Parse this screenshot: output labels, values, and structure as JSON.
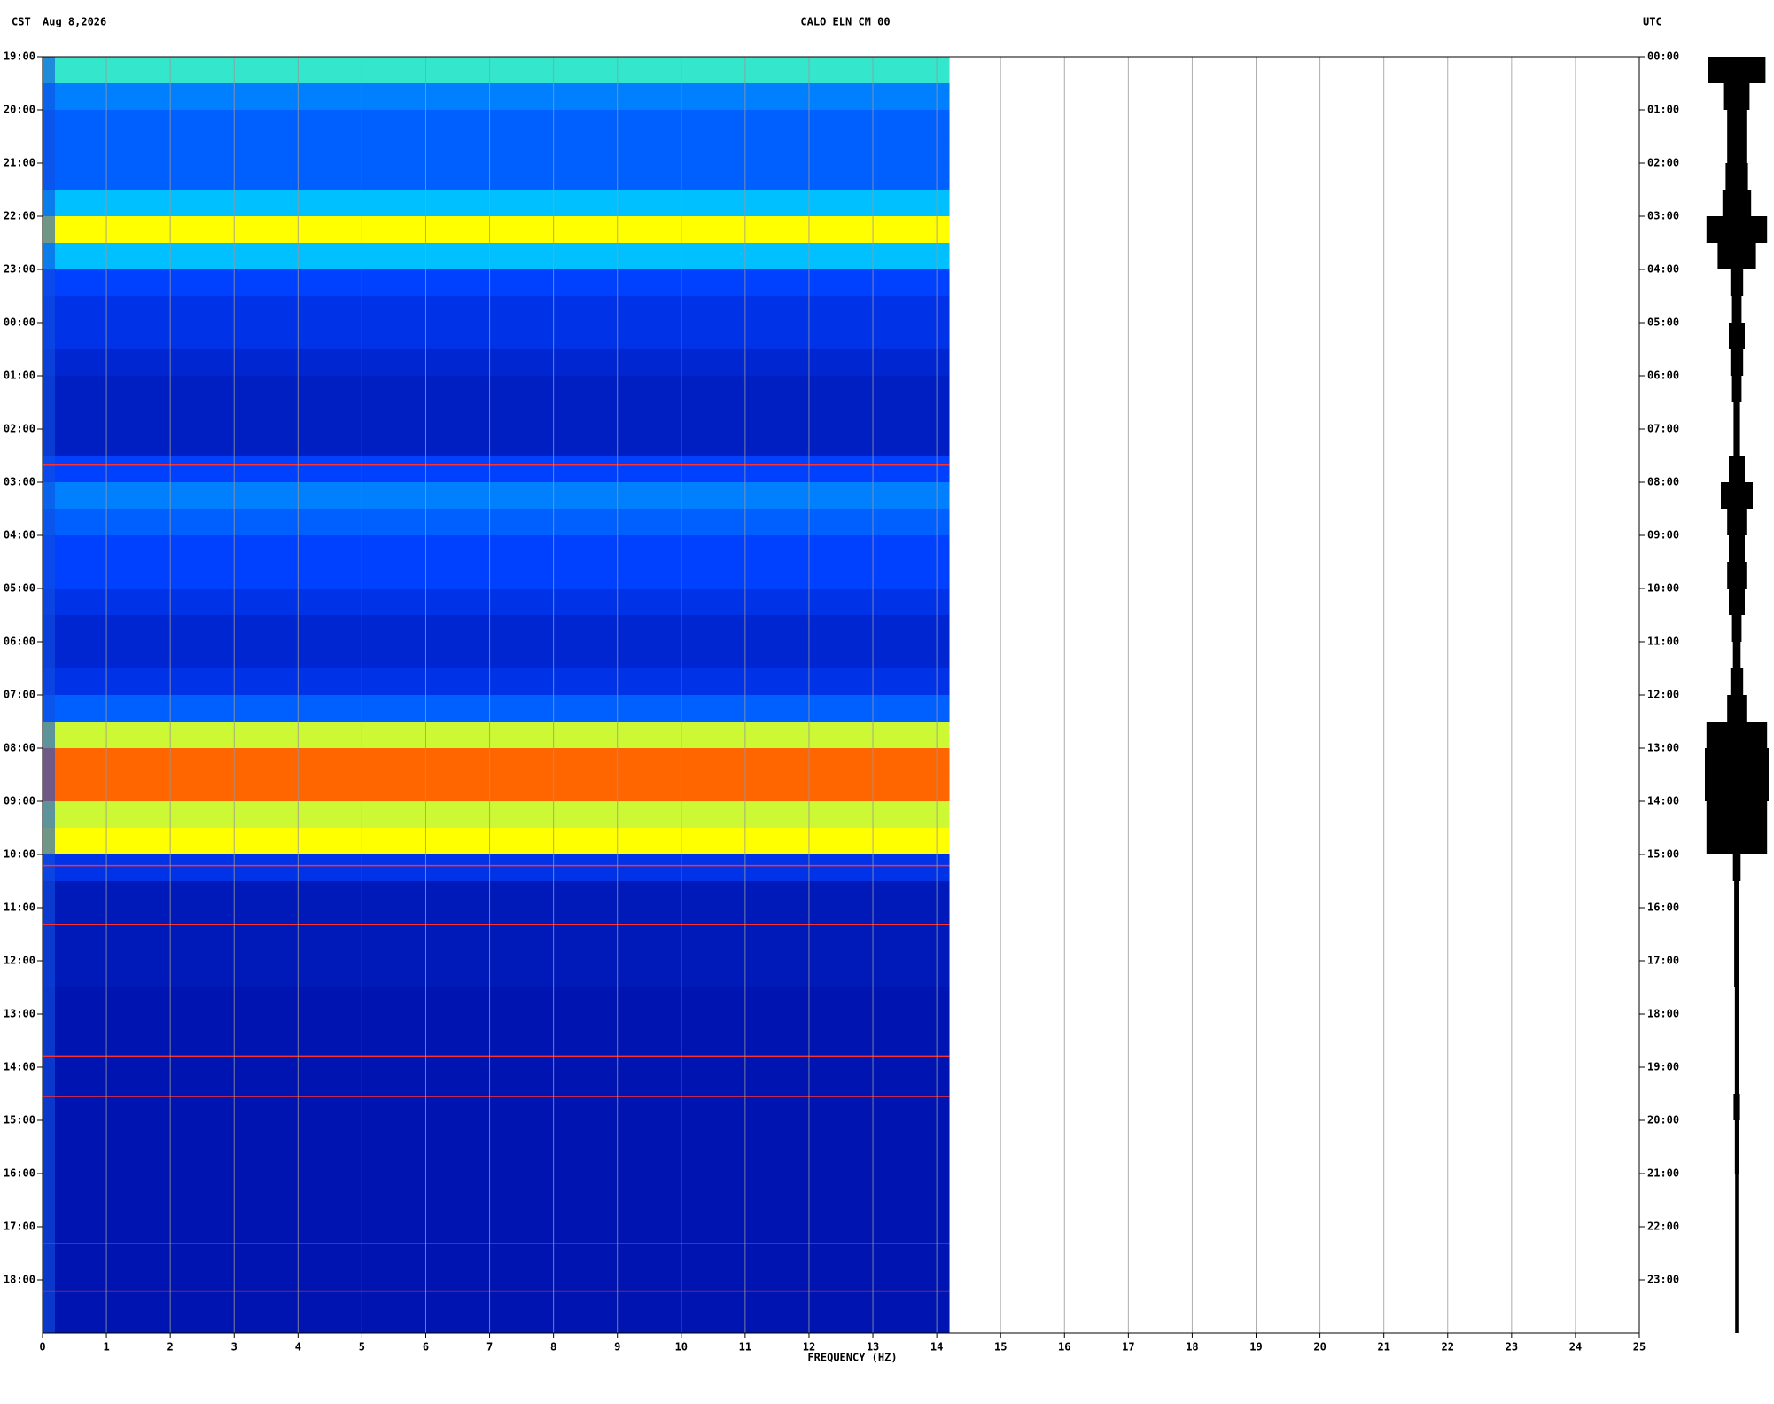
{
  "chart_data": {
    "type": "spectrogram",
    "title": "CALO ELN CM 00",
    "left_label": "CST",
    "date": "Aug 8,2026",
    "right_label": "UTC",
    "xlabel": "FREQUENCY (HZ)",
    "xlim": [
      0,
      25
    ],
    "xticks": [
      0,
      1,
      2,
      3,
      4,
      5,
      6,
      7,
      8,
      9,
      10,
      11,
      12,
      13,
      14,
      15,
      16,
      17,
      18,
      19,
      20,
      21,
      22,
      23,
      24,
      25
    ],
    "data_xlim": [
      0,
      14.2
    ],
    "ylim": [
      0,
      24
    ],
    "yticks": [
      {
        "value": 0,
        "label": "19:00"
      },
      {
        "value": 1,
        "label": "20:00"
      },
      {
        "value": 2,
        "label": "21:00"
      },
      {
        "value": 3,
        "label": "22:00"
      },
      {
        "value": 4,
        "label": "23:00"
      },
      {
        "value": 5,
        "label": "00:00"
      },
      {
        "value": 6,
        "label": "01:00"
      },
      {
        "value": 7,
        "label": "02:00"
      },
      {
        "value": 8,
        "label": "03:00"
      },
      {
        "value": 9,
        "label": "04:00"
      },
      {
        "value": 10,
        "label": "05:00"
      },
      {
        "value": 11,
        "label": "06:00"
      },
      {
        "value": 12,
        "label": "07:00"
      },
      {
        "value": 13,
        "label": "08:00"
      },
      {
        "value": 14,
        "label": "09:00"
      },
      {
        "value": 15,
        "label": "10:00"
      },
      {
        "value": 16,
        "label": "11:00"
      },
      {
        "value": 17,
        "label": "12:00"
      },
      {
        "value": 18,
        "label": "13:00"
      },
      {
        "value": 19,
        "label": "14:00"
      },
      {
        "value": 20,
        "label": "15:00"
      },
      {
        "value": 21,
        "label": "16:00"
      },
      {
        "value": 22,
        "label": "17:00"
      },
      {
        "value": 23,
        "label": "18:00"
      }
    ],
    "y2lim": [
      0,
      24
    ],
    "y2ticks": [
      {
        "value": 0,
        "label": "00:00"
      },
      {
        "value": 1,
        "label": "01:00"
      },
      {
        "value": 2,
        "label": "02:00"
      },
      {
        "value": 3,
        "label": "03:00"
      },
      {
        "value": 4,
        "label": "04:00"
      },
      {
        "value": 5,
        "label": "05:00"
      },
      {
        "value": 6,
        "label": "06:00"
      },
      {
        "value": 7,
        "label": "07:00"
      },
      {
        "value": 8,
        "label": "08:00"
      },
      {
        "value": 9,
        "label": "09:00"
      },
      {
        "value": 10,
        "label": "10:00"
      },
      {
        "value": 11,
        "label": "11:00"
      },
      {
        "value": 12,
        "label": "12:00"
      },
      {
        "value": 13,
        "label": "13:00"
      },
      {
        "value": 14,
        "label": "14:00"
      },
      {
        "value": 15,
        "label": "15:00"
      },
      {
        "value": 16,
        "label": "16:00"
      },
      {
        "value": 17,
        "label": "17:00"
      },
      {
        "value": 18,
        "label": "18:00"
      },
      {
        "value": 19,
        "label": "19:00"
      },
      {
        "value": 20,
        "label": "20:00"
      },
      {
        "value": 21,
        "label": "21:00"
      },
      {
        "value": 22,
        "label": "22:00"
      },
      {
        "value": 23,
        "label": "23:00"
      }
    ],
    "grid": true,
    "colormap": [
      "#00008c",
      "#0040ff",
      "#00e0ff",
      "#ffff00",
      "#ff0000"
    ],
    "intensity": [
      0.55,
      0.35,
      0.3,
      0.3,
      0.3,
      0.45,
      0.75,
      0.45,
      0.25,
      0.2,
      0.2,
      0.15,
      0.12,
      0.12,
      0.12,
      0.25,
      0.35,
      0.3,
      0.25,
      0.25,
      0.2,
      0.15,
      0.15,
      0.2,
      0.3,
      0.7,
      0.9,
      0.9,
      0.7,
      0.75,
      0.2,
      0.1,
      0.1,
      0.1,
      0.1,
      0.08,
      0.08,
      0.08,
      0.08,
      0.08,
      0.08,
      0.08,
      0.08,
      0.08,
      0.08,
      0.08,
      0.08,
      0.08
    ],
    "events": [
      7.68,
      15.21,
      16.32,
      18.79,
      19.55,
      22.32,
      23.21
    ],
    "trace": [
      0.9,
      0.4,
      0.3,
      0.3,
      0.35,
      0.45,
      0.95,
      0.6,
      0.2,
      0.15,
      0.25,
      0.2,
      0.15,
      0.1,
      0.1,
      0.25,
      0.5,
      0.3,
      0.25,
      0.3,
      0.25,
      0.15,
      0.12,
      0.2,
      0.3,
      0.95,
      1.0,
      1.0,
      0.95,
      0.95,
      0.12,
      0.08,
      0.08,
      0.08,
      0.08,
      0.06,
      0.06,
      0.06,
      0.06,
      0.1,
      0.06,
      0.06,
      0.05,
      0.05,
      0.05,
      0.05,
      0.05,
      0.05
    ]
  }
}
